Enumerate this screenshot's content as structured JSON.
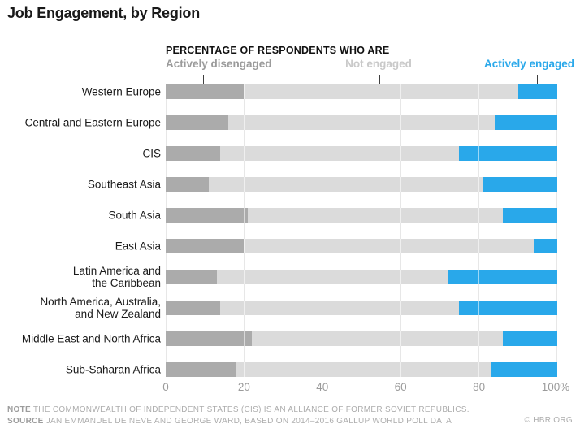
{
  "title": "Job Engagement, by Region",
  "legend": {
    "header": "PERCENTAGE OF RESPONDENTS WHO ARE",
    "items": [
      {
        "label": "Actively disengaged",
        "color": "#9b9b9b"
      },
      {
        "label": "Not engaged",
        "color": "#c9c9c9"
      },
      {
        "label": "Actively engaged",
        "color": "#29a8ea"
      }
    ]
  },
  "chart_data": {
    "type": "bar",
    "orientation": "horizontal",
    "stacked": true,
    "unit": "%",
    "title": "Job Engagement, by Region",
    "categories": [
      "Western Europe",
      "Central and Eastern Europe",
      "CIS",
      "Southeast Asia",
      "South Asia",
      "East Asia",
      "Latin America and\nthe Caribbean",
      "North America, Australia,\nand New Zealand",
      "Middle East and North Africa",
      "Sub-Saharan Africa"
    ],
    "series": [
      {
        "name": "Actively disengaged",
        "color": "#ababab",
        "values": [
          20,
          16,
          14,
          11,
          21,
          20,
          13,
          14,
          22,
          18
        ]
      },
      {
        "name": "Not engaged",
        "color": "#dbdbdb",
        "values": [
          70,
          68,
          61,
          70,
          65,
          74,
          59,
          61,
          64,
          65
        ]
      },
      {
        "name": "Actively engaged",
        "color": "#29a8ea",
        "values": [
          10,
          16,
          25,
          19,
          14,
          6,
          28,
          25,
          14,
          17
        ]
      }
    ],
    "xlim": [
      0,
      100
    ],
    "x_tick_values": [
      0,
      20,
      40,
      60,
      80,
      100
    ],
    "x_tick_labels": [
      "0",
      "20",
      "40",
      "60",
      "80",
      "100%"
    ],
    "grid": true,
    "legend_position": "top"
  },
  "footer": {
    "note_label": "NOTE",
    "note_text": "THE COMMONWEALTH OF INDEPENDENT STATES (CIS) IS AN ALLIANCE OF FORMER SOVIET REPUBLICS.",
    "source_label": "SOURCE",
    "source_text": "JAN EMMANUEL DE NEVE AND GEORGE WARD, BASED ON 2014–2016 GALLUP WORLD POLL DATA",
    "copyright": "© HBR.ORG"
  }
}
